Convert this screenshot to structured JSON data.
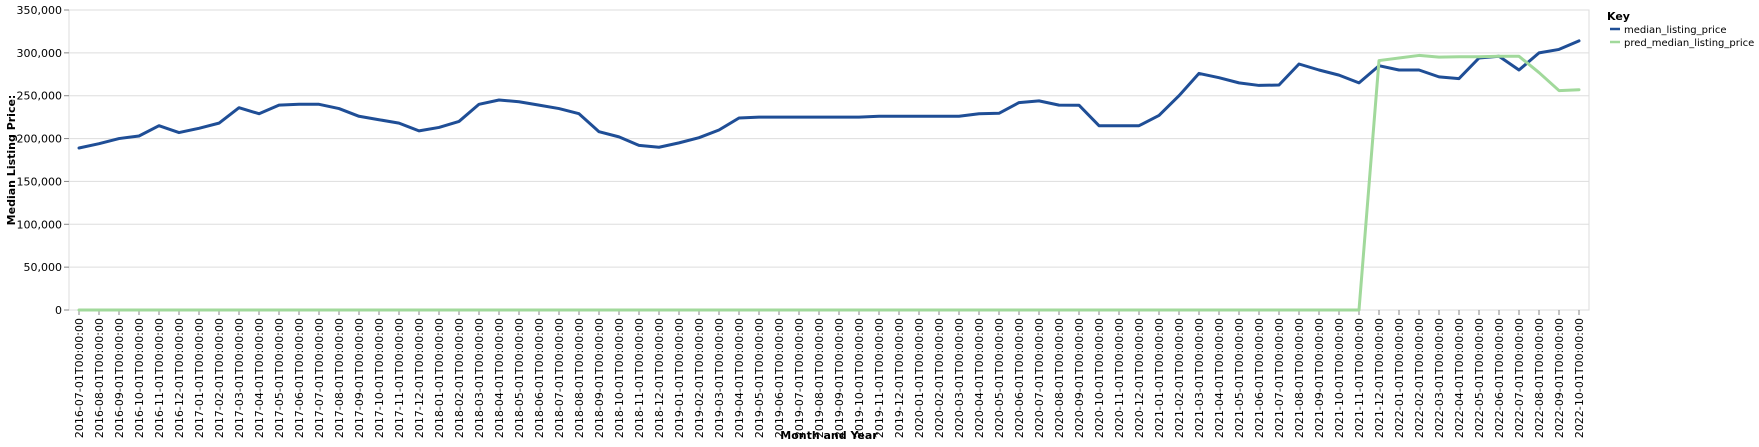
{
  "chart_data": {
    "type": "line",
    "title": "",
    "xlabel": "Month and Year",
    "ylabel": "Median Listing Price:",
    "ylim": [
      0,
      350000
    ],
    "yticks": [
      0,
      50000,
      100000,
      150000,
      200000,
      250000,
      300000,
      350000
    ],
    "ytick_labels": [
      "0",
      "50,000",
      "100,000",
      "150,000",
      "200,000",
      "250,000",
      "300,000",
      "350,000"
    ],
    "grid": true,
    "legend": {
      "title": "Key",
      "position": "top-right"
    },
    "categories": [
      "2016-07-01T00:00:00",
      "2016-08-01T00:00:00",
      "2016-09-01T00:00:00",
      "2016-10-01T00:00:00",
      "2016-11-01T00:00:00",
      "2016-12-01T00:00:00",
      "2017-01-01T00:00:00",
      "2017-02-01T00:00:00",
      "2017-03-01T00:00:00",
      "2017-04-01T00:00:00",
      "2017-05-01T00:00:00",
      "2017-06-01T00:00:00",
      "2017-07-01T00:00:00",
      "2017-08-01T00:00:00",
      "2017-09-01T00:00:00",
      "2017-10-01T00:00:00",
      "2017-11-01T00:00:00",
      "2017-12-01T00:00:00",
      "2018-01-01T00:00:00",
      "2018-02-01T00:00:00",
      "2018-03-01T00:00:00",
      "2018-04-01T00:00:00",
      "2018-05-01T00:00:00",
      "2018-06-01T00:00:00",
      "2018-07-01T00:00:00",
      "2018-08-01T00:00:00",
      "2018-09-01T00:00:00",
      "2018-10-01T00:00:00",
      "2018-11-01T00:00:00",
      "2018-12-01T00:00:00",
      "2019-01-01T00:00:00",
      "2019-02-01T00:00:00",
      "2019-03-01T00:00:00",
      "2019-04-01T00:00:00",
      "2019-05-01T00:00:00",
      "2019-06-01T00:00:00",
      "2019-07-01T00:00:00",
      "2019-08-01T00:00:00",
      "2019-09-01T00:00:00",
      "2019-10-01T00:00:00",
      "2019-11-01T00:00:00",
      "2019-12-01T00:00:00",
      "2020-01-01T00:00:00",
      "2020-02-01T00:00:00",
      "2020-03-01T00:00:00",
      "2020-04-01T00:00:00",
      "2020-05-01T00:00:00",
      "2020-06-01T00:00:00",
      "2020-07-01T00:00:00",
      "2020-08-01T00:00:00",
      "2020-09-01T00:00:00",
      "2020-10-01T00:00:00",
      "2020-11-01T00:00:00",
      "2020-12-01T00:00:00",
      "2021-01-01T00:00:00",
      "2021-02-01T00:00:00",
      "2021-03-01T00:00:00",
      "2021-04-01T00:00:00",
      "2021-05-01T00:00:00",
      "2021-06-01T00:00:00",
      "2021-07-01T00:00:00",
      "2021-08-01T00:00:00",
      "2021-09-01T00:00:00",
      "2021-10-01T00:00:00",
      "2021-11-01T00:00:00",
      "2021-12-01T00:00:00",
      "2022-01-01T00:00:00",
      "2022-02-01T00:00:00",
      "2022-03-01T00:00:00",
      "2022-04-01T00:00:00",
      "2022-05-01T00:00:00",
      "2022-06-01T00:00:00",
      "2022-07-01T00:00:00",
      "2022-08-01T00:00:00",
      "2022-09-01T00:00:00",
      "2022-10-01T00:00:00"
    ],
    "series": [
      {
        "name": "median_listing_price",
        "color": "#1f4e96",
        "values": [
          189000,
          194000,
          200000,
          203000,
          215000,
          207000,
          212000,
          218000,
          236000,
          229000,
          239000,
          240000,
          240000,
          235000,
          226000,
          222000,
          218000,
          209000,
          213000,
          220000,
          240000,
          245000,
          243000,
          239000,
          235000,
          229000,
          208000,
          202000,
          192000,
          189900,
          195000,
          201000,
          210000,
          224000,
          225000,
          225000,
          225000,
          225000,
          225000,
          225000,
          226000,
          226000,
          226000,
          226000,
          226000,
          229000,
          229500,
          242000,
          244000,
          239000,
          238900,
          215000,
          215000,
          215000,
          227000,
          250000,
          276000,
          271000,
          265000,
          262000,
          262500,
          287000,
          280000,
          274000,
          265000,
          285000,
          280000,
          280000,
          272000,
          270000,
          294000,
          296000,
          280000,
          300000,
          304000,
          314000
        ]
      },
      {
        "name": "pred_median_listing_price",
        "color": "#a1d99b",
        "values": [
          0,
          0,
          0,
          0,
          0,
          0,
          0,
          0,
          0,
          0,
          0,
          0,
          0,
          0,
          0,
          0,
          0,
          0,
          0,
          0,
          0,
          0,
          0,
          0,
          0,
          0,
          0,
          0,
          0,
          0,
          0,
          0,
          0,
          0,
          0,
          0,
          0,
          0,
          0,
          0,
          0,
          0,
          0,
          0,
          0,
          0,
          0,
          0,
          0,
          0,
          0,
          0,
          0,
          0,
          0,
          0,
          0,
          0,
          0,
          0,
          0,
          0,
          0,
          0,
          0,
          291000,
          294000,
          297000,
          295000,
          295500,
          295500,
          296000,
          296000,
          277000,
          256000,
          257000
        ]
      }
    ]
  }
}
